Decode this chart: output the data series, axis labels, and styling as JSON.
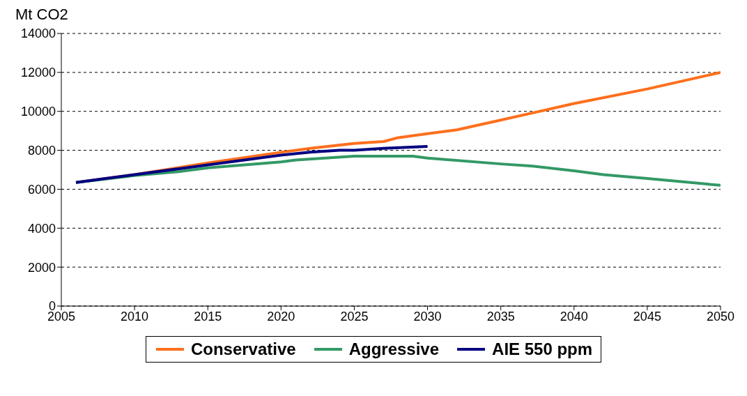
{
  "chart_data": {
    "type": "line",
    "ylabel": "Mt CO2",
    "xlim": [
      2005,
      2050
    ],
    "xticks": [
      2005,
      2010,
      2015,
      2020,
      2025,
      2030,
      2035,
      2040,
      2045,
      2050
    ],
    "ylim": [
      0,
      14000
    ],
    "yticks": [
      0,
      2000,
      4000,
      6000,
      8000,
      10000,
      12000,
      14000
    ],
    "grid": "y",
    "legend": "bottom",
    "marker": "none",
    "line_style": "solid",
    "series": [
      {
        "name": "Conservative",
        "color": "#ff6f1c",
        "x": [
          2006,
          2010,
          2015,
          2020,
          2022,
          2025,
          2027,
          2028,
          2030,
          2032,
          2035,
          2040,
          2045,
          2050
        ],
        "values": [
          6350,
          6750,
          7350,
          7900,
          8100,
          8350,
          8450,
          8650,
          8850,
          9050,
          9550,
          10400,
          11150,
          12000
        ]
      },
      {
        "name": "Aggressive",
        "color": "#339966",
        "x": [
          2006,
          2010,
          2013,
          2015,
          2020,
          2021,
          2025,
          2029,
          2030,
          2035,
          2037,
          2040,
          2042,
          2045,
          2050
        ],
        "values": [
          6350,
          6700,
          6900,
          7100,
          7400,
          7500,
          7700,
          7700,
          7600,
          7300,
          7200,
          6950,
          6750,
          6550,
          6200
        ]
      },
      {
        "name": "AIE 550 ppm",
        "color": "#000080",
        "x": [
          2006,
          2010,
          2015,
          2020,
          2022,
          2024,
          2025,
          2027,
          2030
        ],
        "values": [
          6350,
          6750,
          7250,
          7750,
          7900,
          8000,
          8000,
          8100,
          8200
        ]
      }
    ]
  }
}
